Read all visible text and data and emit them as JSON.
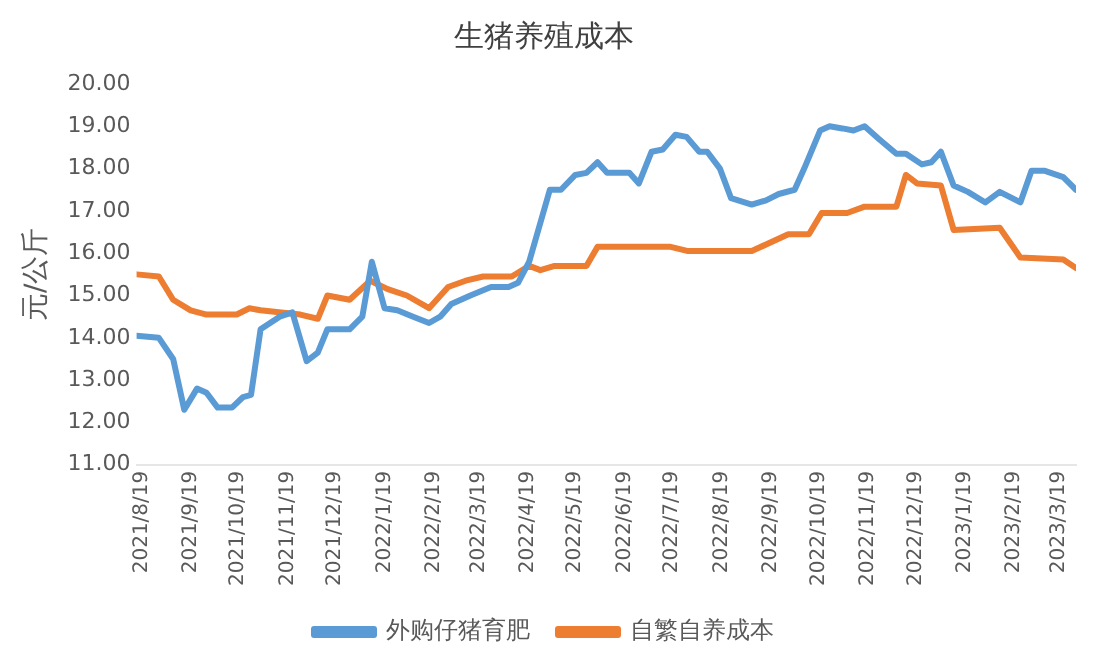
{
  "chart_data": {
    "type": "line",
    "title": "生猪养殖成本",
    "ylabel": "元/公斤",
    "xlim": [
      "2021-08-16",
      "2023-03-30"
    ],
    "xticks": [
      {
        "value": "2021-08-19",
        "label": "2021/8/19"
      },
      {
        "value": "2021-09-19",
        "label": "2021/9/19"
      },
      {
        "value": "2021-10-19",
        "label": "2021/10/19"
      },
      {
        "value": "2021-11-19",
        "label": "2021/11/19"
      },
      {
        "value": "2021-12-19",
        "label": "2021/12/19"
      },
      {
        "value": "2022-01-19",
        "label": "2022/1/19"
      },
      {
        "value": "2022-02-19",
        "label": "2022/2/19"
      },
      {
        "value": "2022-03-19",
        "label": "2022/3/19"
      },
      {
        "value": "2022-04-19",
        "label": "2022/4/19"
      },
      {
        "value": "2022-05-19",
        "label": "2022/5/19"
      },
      {
        "value": "2022-06-19",
        "label": "2022/6/19"
      },
      {
        "value": "2022-07-19",
        "label": "2022/7/19"
      },
      {
        "value": "2022-08-19",
        "label": "2022/8/19"
      },
      {
        "value": "2022-09-19",
        "label": "2022/9/19"
      },
      {
        "value": "2022-10-19",
        "label": "2022/10/19"
      },
      {
        "value": "2022-11-19",
        "label": "2022/11/19"
      },
      {
        "value": "2022-12-19",
        "label": "2022/12/19"
      },
      {
        "value": "2023-01-19",
        "label": "2023/1/19"
      },
      {
        "value": "2023-02-19",
        "label": "2023/2/19"
      },
      {
        "value": "2023-03-19",
        "label": "2023/3/19"
      }
    ],
    "ylim": [
      11,
      20
    ],
    "yticks": [
      {
        "value": 11,
        "label": "11.00"
      },
      {
        "value": 12,
        "label": "12.00"
      },
      {
        "value": 13,
        "label": "13.00"
      },
      {
        "value": 14,
        "label": "14.00"
      },
      {
        "value": 15,
        "label": "15.00"
      },
      {
        "value": 16,
        "label": "16.00"
      },
      {
        "value": 17,
        "label": "17.00"
      },
      {
        "value": 18,
        "label": "18.00"
      },
      {
        "value": 19,
        "label": "19.00"
      },
      {
        "value": 20,
        "label": "20.00"
      }
    ],
    "grid": false,
    "legend": "bottom",
    "marker": "none",
    "line_style": "solid",
    "series": [
      {
        "name": "外购仔猪育肥",
        "color": "#5b9bd5",
        "x": [
          "2021-08-16",
          "2021-08-30",
          "2021-09-08",
          "2021-09-15",
          "2021-09-23",
          "2021-09-29",
          "2021-10-06",
          "2021-10-15",
          "2021-10-22",
          "2021-10-27",
          "2021-11-02",
          "2021-11-14",
          "2021-11-22",
          "2021-12-01",
          "2021-12-08",
          "2021-12-14",
          "2021-12-28",
          "2022-01-05",
          "2022-01-11",
          "2022-01-19",
          "2022-01-27",
          "2022-02-06",
          "2022-02-16",
          "2022-02-23",
          "2022-03-02",
          "2022-03-14",
          "2022-03-27",
          "2022-04-07",
          "2022-04-13",
          "2022-04-20",
          "2022-05-03",
          "2022-05-10",
          "2022-05-19",
          "2022-05-26",
          "2022-06-02",
          "2022-06-08",
          "2022-06-22",
          "2022-06-28",
          "2022-07-06",
          "2022-07-13",
          "2022-07-21",
          "2022-07-28",
          "2022-08-05",
          "2022-08-10",
          "2022-08-18",
          "2022-08-25",
          "2022-09-07",
          "2022-09-16",
          "2022-09-24",
          "2022-10-04",
          "2022-10-10",
          "2022-10-20",
          "2022-10-26",
          "2022-11-03",
          "2022-11-10",
          "2022-11-17",
          "2022-11-26",
          "2022-12-07",
          "2022-12-13",
          "2022-12-23",
          "2022-12-29",
          "2023-01-04",
          "2023-01-12",
          "2023-01-21",
          "2023-02-01",
          "2023-02-10",
          "2023-02-23",
          "2023-03-02",
          "2023-03-10",
          "2023-03-22",
          "2023-03-30"
        ],
        "values": [
          14.05,
          14.0,
          13.5,
          12.3,
          12.8,
          12.7,
          12.35,
          12.35,
          12.6,
          12.65,
          14.2,
          14.5,
          14.6,
          13.45,
          13.65,
          14.2,
          14.2,
          14.5,
          15.8,
          14.7,
          14.65,
          14.5,
          14.35,
          14.5,
          14.8,
          15.0,
          15.2,
          15.2,
          15.3,
          15.8,
          17.5,
          17.5,
          17.85,
          17.9,
          18.15,
          17.9,
          17.9,
          17.65,
          18.4,
          18.45,
          18.8,
          18.75,
          18.4,
          18.4,
          18.0,
          17.3,
          17.15,
          17.25,
          17.4,
          17.5,
          18.0,
          18.9,
          19.0,
          18.95,
          18.9,
          19.0,
          18.7,
          18.35,
          18.35,
          18.1,
          18.15,
          18.4,
          17.6,
          17.45,
          17.2,
          17.45,
          17.2,
          17.95,
          17.95,
          17.8,
          17.5
        ]
      },
      {
        "name": "自繁自养成本",
        "color": "#ed7d31",
        "x": [
          "2021-08-16",
          "2021-08-30",
          "2021-09-08",
          "2021-09-19",
          "2021-09-29",
          "2021-10-18",
          "2021-10-26",
          "2021-11-02",
          "2021-11-15",
          "2021-11-27",
          "2021-12-08",
          "2021-12-14",
          "2021-12-28",
          "2022-01-10",
          "2022-01-21",
          "2022-02-02",
          "2022-02-16",
          "2022-02-28",
          "2022-03-11",
          "2022-03-22",
          "2022-04-09",
          "2022-04-20",
          "2022-04-27",
          "2022-05-06",
          "2022-05-26",
          "2022-06-02",
          "2022-07-18",
          "2022-07-29",
          "2022-09-07",
          "2022-09-30",
          "2022-10-13",
          "2022-10-21",
          "2022-11-06",
          "2022-11-17",
          "2022-12-07",
          "2022-12-13",
          "2022-12-20",
          "2023-01-04",
          "2023-01-12",
          "2023-02-10",
          "2023-02-23",
          "2023-03-22",
          "2023-03-30"
        ],
        "values": [
          15.5,
          15.45,
          14.9,
          14.65,
          14.55,
          14.55,
          14.7,
          14.65,
          14.6,
          14.55,
          14.45,
          15.0,
          14.9,
          15.35,
          15.15,
          15.0,
          14.7,
          15.2,
          15.35,
          15.45,
          15.45,
          15.7,
          15.6,
          15.7,
          15.7,
          16.15,
          16.15,
          16.05,
          16.05,
          16.45,
          16.45,
          16.95,
          16.95,
          17.1,
          17.1,
          17.85,
          17.65,
          17.6,
          16.55,
          16.6,
          15.9,
          15.85,
          15.65
        ]
      }
    ]
  }
}
